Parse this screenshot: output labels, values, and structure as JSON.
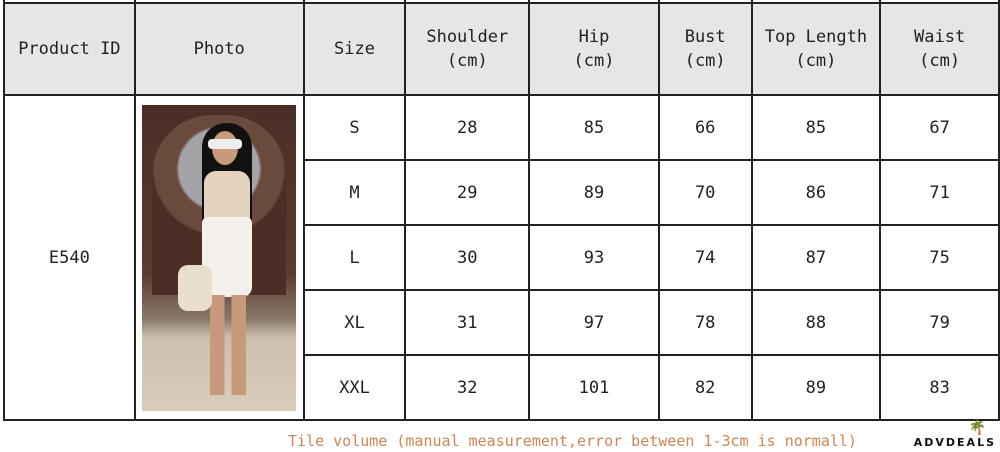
{
  "headers": {
    "product_id": "Product ID",
    "photo": "Photo",
    "size": "Size",
    "shoulder": "Shoulder",
    "hip": "Hip",
    "bust": "Bust",
    "top_length": "Top Length",
    "waist": "Waist",
    "unit": "(cm)"
  },
  "product_id": "E540",
  "rows": [
    {
      "size": "S",
      "shoulder": "28",
      "hip": "85",
      "bust": "66",
      "top_length": "85",
      "waist": "67"
    },
    {
      "size": "M",
      "shoulder": "29",
      "hip": "89",
      "bust": "70",
      "top_length": "86",
      "waist": "71"
    },
    {
      "size": "L",
      "shoulder": "30",
      "hip": "93",
      "bust": "74",
      "top_length": "87",
      "waist": "75"
    },
    {
      "size": "XL",
      "shoulder": "31",
      "hip": "97",
      "bust": "78",
      "top_length": "88",
      "waist": "79"
    },
    {
      "size": "XXL",
      "shoulder": "32",
      "hip": "101",
      "bust": "82",
      "top_length": "89",
      "waist": "83"
    }
  ],
  "note": "Tile volume (manual measurement,error between 1-3cm is normall)",
  "logo": "ADVDEALS",
  "colors": {
    "header_bg": "#e6e6e6",
    "note": "#c8875a"
  }
}
